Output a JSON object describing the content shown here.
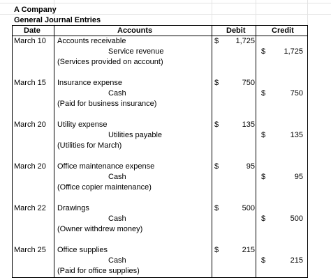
{
  "company": "A Company",
  "report_title": "General Journal Entries",
  "columns": {
    "date": "Date",
    "accounts": "Accounts",
    "debit": "Debit",
    "credit": "Credit"
  },
  "currency_symbol": "$",
  "entries": [
    {
      "date": "March 10",
      "debit_account": "Accounts receivable",
      "credit_account": "Service revenue",
      "memo": "(Services provided on account)",
      "debit": "1,725",
      "credit": "1,725"
    },
    {
      "date": "March 15",
      "debit_account": "Insurance expense",
      "credit_account": "Cash",
      "memo": "(Paid for business insurance)",
      "debit": "750",
      "credit": "750"
    },
    {
      "date": "March 20",
      "debit_account": "Utility expense",
      "credit_account": "Utilities payable",
      "memo": "(Utilities for March)",
      "debit": "135",
      "credit": "135"
    },
    {
      "date": "March 20",
      "debit_account": "Office maintenance expense",
      "credit_account": "Cash",
      "memo": "(Office copier maintenance)",
      "debit": "95",
      "credit": "95"
    },
    {
      "date": "March 22",
      "debit_account": "Drawings",
      "credit_account": "Cash",
      "memo": "(Owner withdrew money)",
      "debit": "500",
      "credit": "500"
    },
    {
      "date": "March 25",
      "debit_account": "Office supplies",
      "credit_account": "Cash",
      "memo": "(Paid for office supplies)",
      "debit": "215",
      "credit": "215"
    }
  ]
}
